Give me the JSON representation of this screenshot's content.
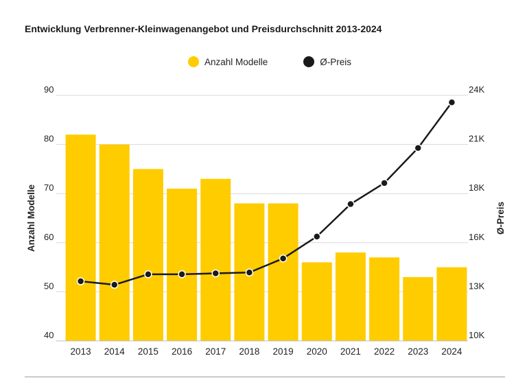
{
  "chart_data": {
    "type": "bar",
    "title": "Entwicklung Verbrenner-Kleinwagenangebot und Preisdurchschnitt 2013-2024",
    "categories": [
      "2013",
      "2014",
      "2015",
      "2016",
      "2017",
      "2018",
      "2019",
      "2020",
      "2021",
      "2022",
      "2023",
      "2024"
    ],
    "series": [
      {
        "name": "Anzahl Modelle",
        "kind": "bar",
        "axis": "left",
        "values": [
          82,
          80,
          75,
          71,
          73,
          68,
          68,
          56,
          58,
          57,
          53,
          55
        ]
      },
      {
        "name": "Ø-Preis",
        "kind": "line",
        "axis": "right",
        "values": [
          13400,
          13200,
          13800,
          13800,
          13850,
          13900,
          14700,
          15950,
          17800,
          19000,
          21000,
          23600
        ]
      }
    ],
    "ylabel": "Anzahl Modelle",
    "ylabel_right": "Ø-Preis",
    "ylim": [
      40,
      90
    ],
    "ylim_right": [
      10000,
      24000
    ],
    "yticks": [
      "40",
      "50",
      "60",
      "70",
      "80",
      "90"
    ],
    "yticks_right": [
      "10K",
      "13K",
      "16K",
      "18K",
      "21K",
      "24K"
    ],
    "grid": true,
    "legend": "top-center",
    "colors": {
      "bar": "#FFCC00",
      "line": "#1a1a1a",
      "grid": "#d9d9d9"
    }
  }
}
